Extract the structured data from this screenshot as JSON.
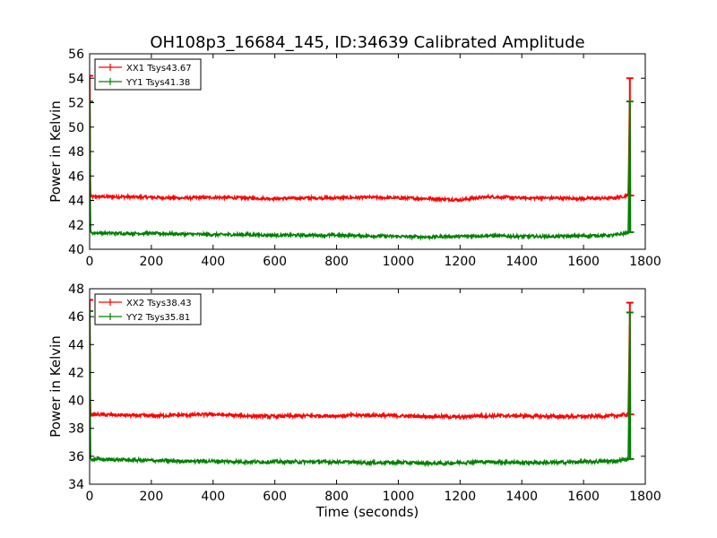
{
  "title": "OH108p3_16684_145, ID:34639 Calibrated Amplitude",
  "chart_data": [
    {
      "type": "line",
      "ylabel": "Power in Kelvin",
      "xlabel": "",
      "xlim": [
        0,
        1800
      ],
      "ylim": [
        40,
        56
      ],
      "xticks": [
        0,
        200,
        400,
        600,
        800,
        1000,
        1200,
        1400,
        1600,
        1800
      ],
      "yticks": [
        40,
        42,
        44,
        46,
        48,
        50,
        52,
        54,
        56
      ],
      "legend_position": "upper-left",
      "series": [
        {
          "name": "XX1 Tsys43.67",
          "color": "#ff0000",
          "x": [
            0,
            2,
            4,
            100,
            200,
            300,
            400,
            500,
            600,
            700,
            800,
            900,
            1000,
            1100,
            1150,
            1200,
            1250,
            1300,
            1400,
            1500,
            1600,
            1700,
            1745,
            1750,
            1752
          ],
          "y": [
            54.2,
            44.3,
            44.3,
            44.3,
            44.25,
            44.2,
            44.25,
            44.2,
            44.15,
            44.2,
            44.2,
            44.25,
            44.2,
            44.15,
            44.1,
            44.05,
            44.2,
            44.3,
            44.2,
            44.2,
            44.15,
            44.2,
            44.4,
            54.0,
            44.4
          ],
          "noise": 0.12
        },
        {
          "name": "YY1 Tsys41.38",
          "color": "#008000",
          "x": [
            0,
            2,
            4,
            100,
            200,
            300,
            400,
            500,
            600,
            700,
            800,
            900,
            1000,
            1100,
            1150,
            1200,
            1250,
            1300,
            1400,
            1500,
            1600,
            1700,
            1745,
            1750,
            1752
          ],
          "y": [
            52.1,
            41.4,
            41.35,
            41.3,
            41.3,
            41.25,
            41.2,
            41.2,
            41.15,
            41.15,
            41.15,
            41.1,
            41.05,
            41.0,
            41.05,
            41.05,
            41.1,
            41.1,
            41.05,
            41.05,
            41.1,
            41.15,
            41.35,
            52.1,
            41.4
          ],
          "noise": 0.12
        }
      ]
    },
    {
      "type": "line",
      "ylabel": "Power in Kelvin",
      "xlabel": "Time (seconds)",
      "xlim": [
        0,
        1800
      ],
      "ylim": [
        34,
        48
      ],
      "xticks": [
        0,
        200,
        400,
        600,
        800,
        1000,
        1200,
        1400,
        1600,
        1800
      ],
      "yticks": [
        34,
        36,
        38,
        40,
        42,
        44,
        46,
        48
      ],
      "legend_position": "upper-left",
      "series": [
        {
          "name": "XX2 Tsys38.43",
          "color": "#ff0000",
          "x": [
            0,
            2,
            4,
            100,
            200,
            300,
            400,
            500,
            600,
            700,
            800,
            900,
            1000,
            1100,
            1150,
            1200,
            1250,
            1300,
            1400,
            1500,
            1600,
            1700,
            1745,
            1750,
            1752
          ],
          "y": [
            47.2,
            39.0,
            39.0,
            38.95,
            38.9,
            38.95,
            39.0,
            38.9,
            38.85,
            38.9,
            38.9,
            38.95,
            38.9,
            38.85,
            38.85,
            38.8,
            38.9,
            38.9,
            38.9,
            38.85,
            38.85,
            38.9,
            39.0,
            47.0,
            39.0
          ],
          "noise": 0.12
        },
        {
          "name": "YY2 Tsys35.81",
          "color": "#008000",
          "x": [
            0,
            2,
            4,
            100,
            200,
            300,
            400,
            500,
            600,
            700,
            800,
            900,
            1000,
            1100,
            1150,
            1200,
            1250,
            1300,
            1400,
            1500,
            1600,
            1700,
            1745,
            1750,
            1752
          ],
          "y": [
            46.4,
            35.8,
            35.8,
            35.75,
            35.7,
            35.65,
            35.65,
            35.6,
            35.6,
            35.6,
            35.6,
            35.55,
            35.55,
            35.5,
            35.5,
            35.55,
            35.6,
            35.6,
            35.55,
            35.55,
            35.6,
            35.65,
            35.8,
            46.3,
            35.8
          ],
          "noise": 0.12
        }
      ]
    }
  ]
}
